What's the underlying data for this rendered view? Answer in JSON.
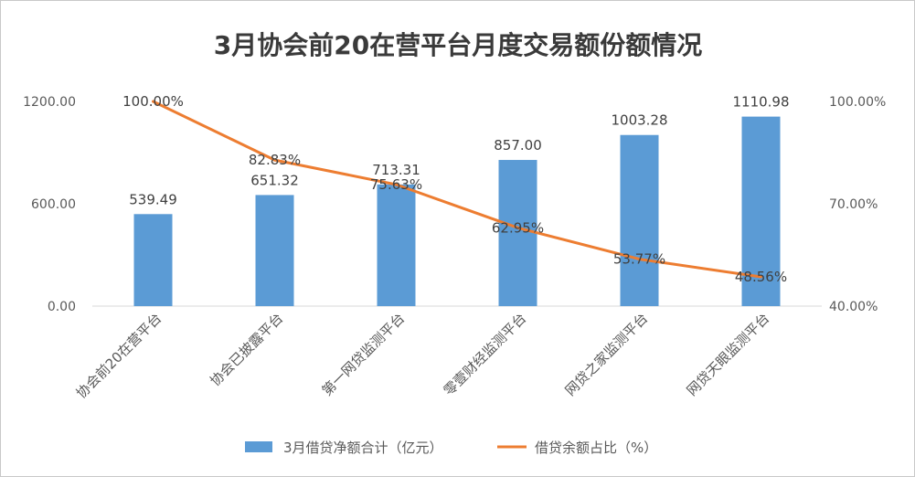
{
  "chart_data": {
    "type": "bar+line",
    "title": "3月协会前20在营平台月度交易额份额情况",
    "categories": [
      "协会前20在营平台",
      "协会已披露平台",
      "第一网贷监测平台",
      "零壹财经监测平台",
      "网贷之家监测平台",
      "网贷天眼监测平台"
    ],
    "series": [
      {
        "name": "3月借贷净额合计（亿元）",
        "type": "bar",
        "axis": "left",
        "values": [
          539.49,
          651.32,
          713.31,
          857.0,
          1003.28,
          1110.98
        ],
        "labels": [
          "539.49",
          "651.32",
          "713.31",
          "857.00",
          "1003.28",
          "1110.98"
        ]
      },
      {
        "name": "借贷余额占比（%）",
        "type": "line",
        "axis": "right",
        "values": [
          100.0,
          82.83,
          75.63,
          62.95,
          53.77,
          48.56
        ],
        "labels": [
          "100.00%",
          "82.83%",
          "75.63%",
          "62.95%",
          "53.77%",
          "48.56%"
        ]
      }
    ],
    "y_left": {
      "min": 0,
      "max": 1200,
      "ticks": [
        0,
        600,
        1200
      ],
      "tick_labels": [
        "0.00",
        "600.00",
        "1200.00"
      ]
    },
    "y_right": {
      "min": 40,
      "max": 100,
      "ticks": [
        40,
        70,
        100
      ],
      "tick_labels": [
        "40.00%",
        "70.00%",
        "100.00%"
      ]
    },
    "legend_position": "bottom",
    "colors": {
      "bar": "#5b9bd5",
      "line": "#ed7d31",
      "axis": "#d9d9d9"
    }
  }
}
